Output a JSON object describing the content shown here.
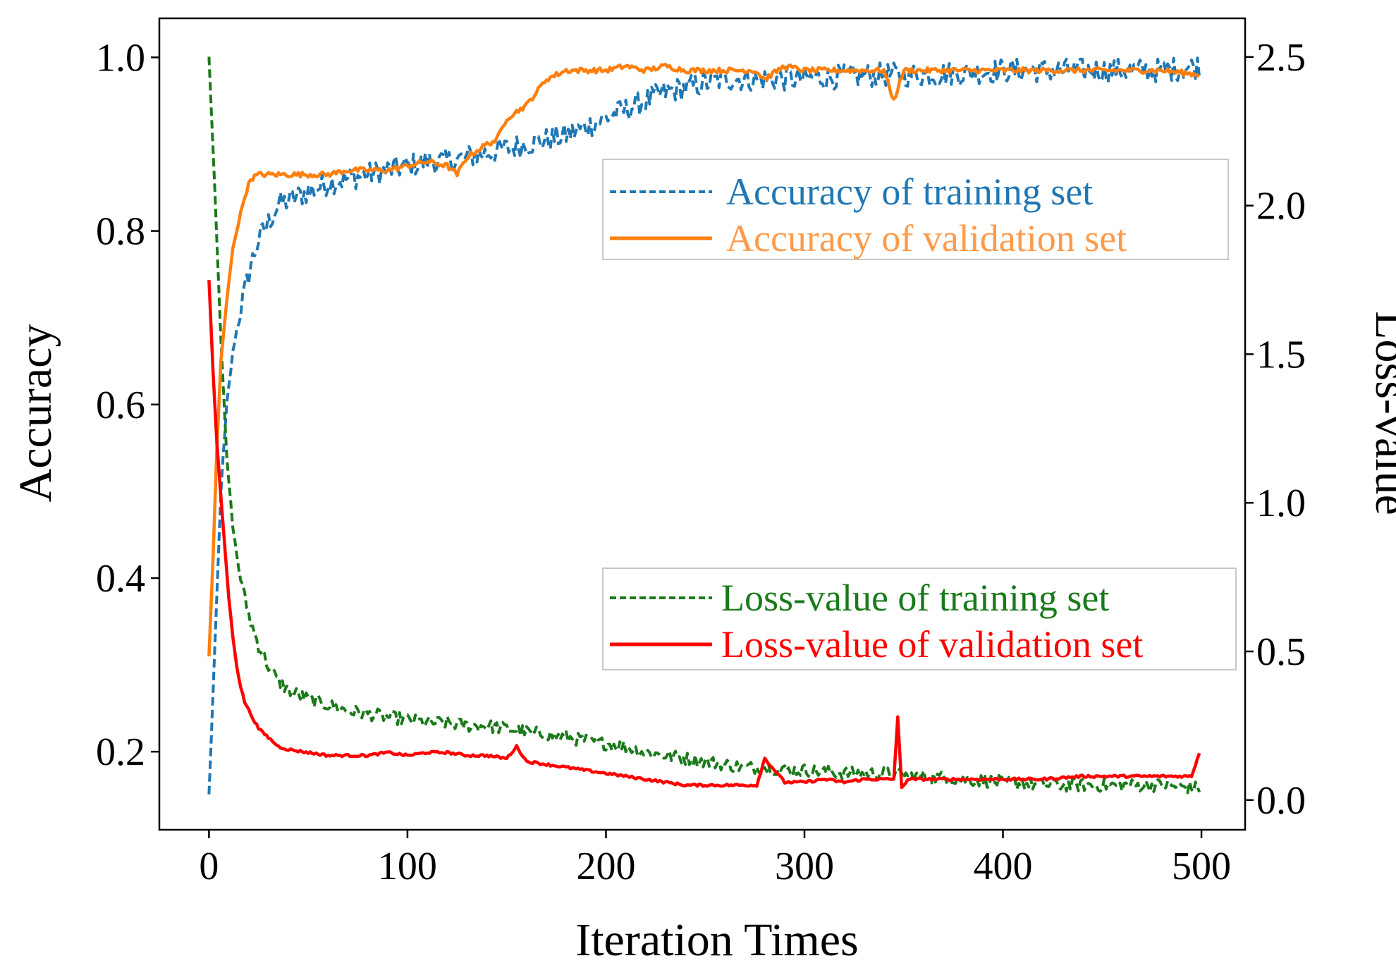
{
  "chart_data": {
    "type": "line",
    "xlabel": "Iteration Times",
    "ylabel_left": "Accuracy",
    "ylabel_right": "Loss-value",
    "xlim": [
      -25,
      522
    ],
    "ylim_left": [
      0.11,
      1.045
    ],
    "ylim_right": [
      -0.1,
      2.63
    ],
    "xticks": [
      0,
      100,
      200,
      300,
      400,
      500
    ],
    "xtick_labels": [
      "0",
      "100",
      "200",
      "300",
      "400",
      "500"
    ],
    "yticks_left": [
      0.2,
      0.4,
      0.6,
      0.8,
      1.0
    ],
    "ytick_labels_left": [
      "0.2",
      "0.4",
      "0.6",
      "0.8",
      "1.0"
    ],
    "yticks_right": [
      0.0,
      0.5,
      1.0,
      1.5,
      2.0,
      2.5
    ],
    "ytick_labels_right": [
      "0.0",
      "0.5",
      "1.0",
      "1.5",
      "2.0",
      "2.5"
    ],
    "grid": false,
    "legends": [
      {
        "placement": "upper-right",
        "entries": [
          "Accuracy of training set",
          "Accuracy of validation set"
        ]
      },
      {
        "placement": "lower-right",
        "entries": [
          "Loss-value of training set",
          "Loss-value of validation set"
        ]
      }
    ],
    "series": [
      {
        "name": "Accuracy of training set",
        "axis": "left",
        "color": "#1f77b4",
        "style": "dashed",
        "x": [
          0,
          3,
          6,
          9,
          12,
          15,
          18,
          21,
          25,
          30,
          35,
          40,
          50,
          60,
          70,
          80,
          90,
          100,
          110,
          120,
          130,
          140,
          150,
          160,
          170,
          180,
          190,
          200,
          210,
          220,
          230,
          240,
          250,
          260,
          270,
          280,
          290,
          300,
          320,
          340,
          360,
          380,
          400,
          420,
          440,
          460,
          480,
          499
        ],
        "values": [
          0.15,
          0.32,
          0.5,
          0.6,
          0.66,
          0.7,
          0.73,
          0.76,
          0.79,
          0.81,
          0.83,
          0.835,
          0.845,
          0.855,
          0.86,
          0.865,
          0.87,
          0.875,
          0.88,
          0.88,
          0.885,
          0.89,
          0.895,
          0.9,
          0.905,
          0.91,
          0.92,
          0.93,
          0.94,
          0.95,
          0.96,
          0.965,
          0.97,
          0.975,
          0.975,
          0.975,
          0.975,
          0.975,
          0.978,
          0.98,
          0.98,
          0.982,
          0.985,
          0.985,
          0.985,
          0.985,
          0.985,
          0.99
        ]
      },
      {
        "name": "Accuracy of validation set",
        "axis": "left",
        "color": "#ff7f0e",
        "style": "solid",
        "x": [
          0,
          2,
          4,
          6,
          9,
          12,
          15,
          18,
          21,
          25,
          30,
          35,
          40,
          50,
          60,
          70,
          80,
          90,
          100,
          110,
          120,
          125,
          130,
          140,
          145,
          150,
          160,
          165,
          170,
          180,
          190,
          200,
          210,
          220,
          230,
          240,
          250,
          260,
          270,
          275,
          280,
          290,
          300,
          320,
          340,
          345,
          350,
          360,
          380,
          400,
          420,
          440,
          460,
          480,
          499
        ],
        "values": [
          0.31,
          0.42,
          0.55,
          0.65,
          0.72,
          0.78,
          0.81,
          0.84,
          0.86,
          0.865,
          0.865,
          0.865,
          0.865,
          0.865,
          0.865,
          0.87,
          0.87,
          0.87,
          0.875,
          0.88,
          0.875,
          0.865,
          0.885,
          0.9,
          0.905,
          0.93,
          0.945,
          0.96,
          0.975,
          0.985,
          0.985,
          0.985,
          0.99,
          0.985,
          0.99,
          0.985,
          0.985,
          0.985,
          0.985,
          0.985,
          0.975,
          0.99,
          0.985,
          0.985,
          0.985,
          0.95,
          0.985,
          0.985,
          0.985,
          0.985,
          0.985,
          0.985,
          0.985,
          0.985,
          0.98
        ]
      },
      {
        "name": "Loss-value of training set",
        "axis": "right",
        "color": "#1a7a1a",
        "style": "dashed",
        "x": [
          0,
          3,
          6,
          9,
          12,
          15,
          18,
          21,
          25,
          30,
          35,
          40,
          50,
          60,
          70,
          80,
          90,
          100,
          110,
          120,
          130,
          140,
          150,
          160,
          170,
          180,
          190,
          200,
          210,
          220,
          230,
          240,
          250,
          260,
          270,
          280,
          290,
          300,
          320,
          340,
          360,
          380,
          400,
          420,
          440,
          460,
          480,
          499
        ],
        "values": [
          2.5,
          2.05,
          1.55,
          1.15,
          0.92,
          0.78,
          0.68,
          0.6,
          0.52,
          0.45,
          0.4,
          0.37,
          0.34,
          0.32,
          0.3,
          0.29,
          0.28,
          0.27,
          0.26,
          0.26,
          0.25,
          0.25,
          0.24,
          0.23,
          0.22,
          0.21,
          0.2,
          0.19,
          0.18,
          0.16,
          0.15,
          0.14,
          0.13,
          0.12,
          0.11,
          0.11,
          0.1,
          0.1,
          0.09,
          0.09,
          0.08,
          0.07,
          0.06,
          0.05,
          0.05,
          0.05,
          0.05,
          0.04
        ]
      },
      {
        "name": "Loss-value of validation set",
        "axis": "right",
        "color": "#ff0000",
        "style": "solid",
        "x": [
          0,
          2,
          4,
          6,
          8,
          10,
          12,
          14,
          16,
          18,
          21,
          25,
          30,
          35,
          40,
          50,
          60,
          70,
          80,
          90,
          100,
          110,
          120,
          130,
          140,
          150,
          155,
          160,
          170,
          180,
          190,
          200,
          210,
          220,
          230,
          240,
          250,
          260,
          270,
          276,
          280,
          290,
          300,
          310,
          320,
          330,
          345,
          347,
          349,
          352,
          360,
          380,
          400,
          420,
          440,
          460,
          480,
          495,
          499
        ],
        "values": [
          1.75,
          1.45,
          1.2,
          1.02,
          0.85,
          0.68,
          0.55,
          0.45,
          0.38,
          0.33,
          0.29,
          0.24,
          0.21,
          0.18,
          0.17,
          0.16,
          0.15,
          0.15,
          0.15,
          0.16,
          0.15,
          0.16,
          0.16,
          0.15,
          0.15,
          0.14,
          0.18,
          0.13,
          0.12,
          0.11,
          0.1,
          0.09,
          0.08,
          0.07,
          0.06,
          0.05,
          0.05,
          0.05,
          0.05,
          0.05,
          0.14,
          0.06,
          0.06,
          0.07,
          0.06,
          0.07,
          0.07,
          0.28,
          0.04,
          0.07,
          0.07,
          0.07,
          0.07,
          0.07,
          0.08,
          0.08,
          0.08,
          0.08,
          0.16
        ]
      }
    ]
  }
}
